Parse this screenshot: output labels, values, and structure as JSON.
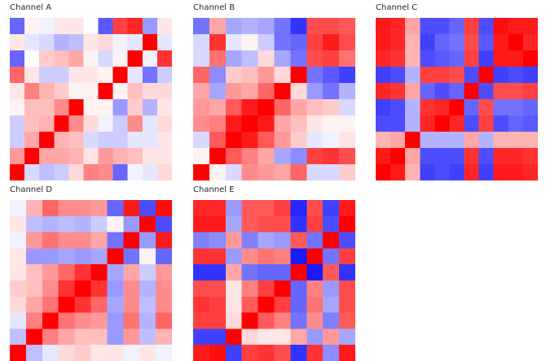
{
  "chart_data": [
    {
      "type": "heatmap",
      "title": "Channel A",
      "colors": {
        "low": "#0000ff",
        "mid": "#ffffff",
        "high": "#ff0000"
      },
      "vlim": [
        -1,
        1
      ],
      "matrix": [
        [
          -0.6,
          0.05,
          -0.05,
          0.1,
          0.1,
          0.0,
          -0.65,
          0.75,
          0.85,
          -0.4,
          0.1
        ],
        [
          0.1,
          -0.1,
          -0.15,
          -0.3,
          -0.25,
          0.1,
          0.15,
          -0.05,
          -0.1,
          1.0,
          -0.1
        ],
        [
          -0.6,
          0.0,
          0.2,
          0.25,
          0.35,
          0.05,
          -0.15,
          0.05,
          1.0,
          -0.05,
          0.8
        ],
        [
          0.6,
          0.1,
          -0.2,
          -0.2,
          0.1,
          0.1,
          0.05,
          1.0,
          -0.1,
          -0.55,
          -0.2
        ],
        [
          0.1,
          0.5,
          0.3,
          0.2,
          0.05,
          0.05,
          1.0,
          0.05,
          0.25,
          0.15,
          0.15
        ],
        [
          0.05,
          0.25,
          0.25,
          0.45,
          1.0,
          0.05,
          0.05,
          -0.4,
          0.2,
          -0.3,
          0.1
        ],
        [
          -0.2,
          0.25,
          0.3,
          1.0,
          0.45,
          0.15,
          -0.05,
          -0.2,
          0.45,
          -0.1,
          0.15
        ],
        [
          -0.2,
          0.35,
          1.0,
          0.3,
          0.25,
          -0.15,
          -0.2,
          -0.2,
          -0.1,
          -0.1,
          0.1
        ],
        [
          0.4,
          1.0,
          0.35,
          0.35,
          0.3,
          0.1,
          0.4,
          0.3,
          0.25,
          0.1,
          0.1
        ],
        [
          1.0,
          -0.15,
          -0.25,
          -0.2,
          0.15,
          0.5,
          0.45,
          -0.6,
          -0.05,
          -0.1,
          0.15
        ]
      ]
    },
    {
      "type": "heatmap",
      "title": "Channel B",
      "colors": {
        "low": "#0000ff",
        "mid": "#ffffff",
        "high": "#ff0000"
      },
      "vlim": [
        -1,
        1
      ],
      "matrix": [
        [
          -0.55,
          0.35,
          -0.35,
          -0.3,
          -0.35,
          -0.55,
          -0.8,
          0.7,
          0.7,
          0.65
        ],
        [
          -0.15,
          0.8,
          -0.1,
          0.05,
          -0.2,
          -0.55,
          -0.6,
          0.75,
          0.9,
          0.7
        ],
        [
          -0.15,
          0.55,
          -0.35,
          -0.25,
          0.15,
          -0.35,
          -0.55,
          0.7,
          0.75,
          0.55
        ],
        [
          0.6,
          -0.45,
          0.2,
          0.25,
          0.4,
          0.15,
          1.0,
          -0.55,
          -0.65,
          -0.75
        ],
        [
          0.35,
          -0.35,
          0.4,
          0.35,
          0.6,
          1.0,
          0.15,
          -0.4,
          -0.55,
          -0.3
        ],
        [
          0.4,
          0.35,
          0.65,
          0.9,
          1.0,
          0.6,
          0.35,
          0.25,
          0.2,
          -0.15
        ],
        [
          0.45,
          0.5,
          0.9,
          1.0,
          0.9,
          0.35,
          0.25,
          0.1,
          0.05,
          0.05
        ],
        [
          -0.15,
          0.65,
          1.0,
          0.9,
          0.65,
          0.4,
          0.2,
          -0.1,
          -0.05,
          0.1
        ],
        [
          0.05,
          1.0,
          0.65,
          0.5,
          0.35,
          -0.35,
          -0.45,
          0.75,
          0.8,
          0.7
        ],
        [
          1.0,
          0.05,
          -0.15,
          0.45,
          0.4,
          0.35,
          0.6,
          -0.15,
          -0.15,
          0.2
        ]
      ]
    },
    {
      "type": "heatmap",
      "title": "Channel C",
      "colors": {
        "low": "#0000ff",
        "mid": "#ffffff",
        "high": "#ff0000"
      },
      "vlim": [
        -1,
        1
      ],
      "matrix": [
        [
          0.9,
          0.85,
          0.35,
          -0.7,
          -0.7,
          -0.6,
          0.75,
          -0.7,
          0.95,
          0.9,
          0.9
        ],
        [
          0.9,
          0.85,
          0.3,
          -0.75,
          -0.6,
          -0.55,
          0.7,
          -0.65,
          0.9,
          1.0,
          0.85
        ],
        [
          0.85,
          0.8,
          0.3,
          -0.7,
          -0.65,
          -0.6,
          0.75,
          -0.75,
          0.9,
          0.9,
          1.0
        ],
        [
          -0.75,
          -0.7,
          -0.3,
          0.75,
          0.75,
          0.7,
          -0.7,
          1.0,
          -0.75,
          -0.7,
          -0.75
        ],
        [
          0.85,
          0.8,
          0.35,
          -0.6,
          -0.7,
          -0.6,
          1.0,
          -0.7,
          0.7,
          0.7,
          0.75
        ],
        [
          -0.75,
          -0.7,
          -0.3,
          0.8,
          0.85,
          1.0,
          -0.6,
          0.7,
          -0.55,
          -0.55,
          -0.6
        ],
        [
          -0.7,
          -0.7,
          -0.3,
          0.85,
          1.0,
          0.85,
          -0.7,
          0.75,
          -0.7,
          -0.6,
          -0.65
        ],
        [
          0.3,
          0.35,
          1.0,
          -0.3,
          -0.3,
          -0.3,
          0.35,
          -0.3,
          0.3,
          0.3,
          0.3
        ],
        [
          0.9,
          1.0,
          0.35,
          -0.7,
          -0.7,
          -0.7,
          0.8,
          -0.7,
          0.85,
          0.85,
          0.8
        ],
        [
          1.0,
          0.9,
          0.3,
          -0.75,
          -0.7,
          -0.75,
          0.85,
          -0.75,
          0.9,
          0.9,
          0.85
        ]
      ]
    },
    {
      "type": "heatmap",
      "title": "Channel D",
      "colors": {
        "low": "#0000ff",
        "mid": "#ffffff",
        "high": "#ff0000"
      },
      "vlim": [
        -1,
        1
      ],
      "matrix": [
        [
          -0.05,
          0.3,
          0.6,
          0.45,
          0.45,
          0.4,
          -0.6,
          0.9,
          -0.7,
          0.95
        ],
        [
          0.1,
          -0.25,
          -0.3,
          -0.25,
          -0.3,
          -0.2,
          0.05,
          -0.4,
          1.0,
          -0.7
        ],
        [
          -0.05,
          0.4,
          0.55,
          0.45,
          0.45,
          0.35,
          -0.55,
          1.0,
          -0.4,
          0.9
        ],
        [
          0.1,
          -0.4,
          -0.4,
          -0.35,
          -0.4,
          -0.35,
          1.0,
          -0.55,
          0.05,
          -0.6
        ],
        [
          0.1,
          0.25,
          0.4,
          0.6,
          0.8,
          1.0,
          -0.35,
          0.35,
          -0.2,
          0.4
        ],
        [
          0.2,
          0.25,
          0.45,
          0.8,
          1.0,
          0.8,
          -0.4,
          0.45,
          -0.3,
          0.45
        ],
        [
          0.15,
          0.35,
          0.55,
          1.0,
          0.8,
          0.6,
          -0.35,
          0.45,
          -0.25,
          0.45
        ],
        [
          -0.1,
          0.5,
          1.0,
          0.55,
          0.45,
          0.4,
          -0.4,
          0.55,
          -0.3,
          0.6
        ],
        [
          -0.25,
          1.0,
          0.5,
          0.35,
          0.25,
          0.25,
          -0.4,
          0.4,
          -0.25,
          0.3
        ],
        [
          1.0,
          -0.25,
          -0.1,
          0.15,
          0.2,
          0.1,
          0.1,
          -0.05,
          0.1,
          -0.05
        ]
      ]
    },
    {
      "type": "heatmap",
      "title": "Channel E",
      "colors": {
        "low": "#0000ff",
        "mid": "#ffffff",
        "high": "#ff0000"
      },
      "vlim": [
        -1,
        1
      ],
      "matrix": [
        [
          0.85,
          0.85,
          -0.4,
          0.65,
          0.65,
          0.75,
          -0.85,
          0.7,
          -0.75,
          0.9
        ],
        [
          0.9,
          0.9,
          -0.35,
          0.65,
          0.7,
          0.7,
          -0.8,
          0.75,
          -0.7,
          1.0
        ],
        [
          -0.5,
          -0.45,
          0.4,
          -0.5,
          -0.35,
          -0.4,
          0.65,
          -0.55,
          1.0,
          -0.7
        ],
        [
          0.8,
          0.8,
          -0.4,
          0.45,
          0.55,
          0.5,
          -0.9,
          1.0,
          -0.55,
          0.75
        ],
        [
          -0.8,
          -0.8,
          0.35,
          -0.55,
          -0.6,
          -0.6,
          1.0,
          -0.9,
          0.65,
          -0.8
        ],
        [
          0.7,
          0.7,
          0.1,
          0.5,
          0.75,
          1.0,
          -0.6,
          0.5,
          -0.4,
          0.7
        ],
        [
          0.8,
          0.75,
          0.1,
          0.65,
          1.0,
          0.75,
          -0.6,
          0.55,
          -0.35,
          0.7
        ],
        [
          0.75,
          0.75,
          0.15,
          1.0,
          0.65,
          0.5,
          -0.55,
          0.45,
          -0.5,
          0.65
        ],
        [
          -0.75,
          -0.75,
          1.0,
          0.15,
          0.1,
          0.1,
          0.35,
          -0.4,
          0.4,
          -0.35
        ],
        [
          0.9,
          0.95,
          -0.75,
          0.75,
          0.8,
          0.7,
          -0.8,
          0.8,
          -0.45,
          0.9
        ]
      ]
    }
  ]
}
